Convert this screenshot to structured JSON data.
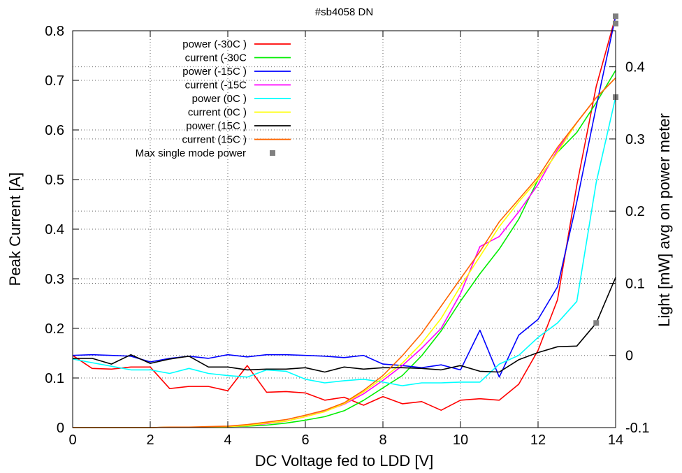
{
  "chart_data": {
    "type": "line",
    "title": "#sb4058 DN",
    "xlabel": "DC Voltage fed to LDD [V]",
    "ylabel": "Peak Current [A]",
    "y2label": "Light [mW] avg on power meter",
    "xlim": [
      0,
      14
    ],
    "ylim": [
      0,
      0.8
    ],
    "y2lim": [
      -0.1,
      0.45
    ],
    "grid": true,
    "legend_position": "top-left",
    "x_ticks": [
      "0",
      "2",
      "4",
      "6",
      "8",
      "10",
      "12",
      "14"
    ],
    "y_ticks": [
      "0",
      "0.1",
      "0.2",
      "0.3",
      "0.4",
      "0.5",
      "0.6",
      "0.7",
      "0.8"
    ],
    "y2_ticks": [
      "-0.1",
      "0",
      "0.1",
      "0.2",
      "0.3",
      "0.4"
    ],
    "x": [
      0,
      0.5,
      1,
      1.5,
      2,
      2.5,
      3,
      3.5,
      4,
      4.5,
      5,
      5.5,
      6,
      6.5,
      7,
      7.5,
      8,
      8.5,
      9,
      9.5,
      10,
      10.5,
      11,
      11.5,
      12,
      12.5,
      13,
      13.5,
      14
    ],
    "series": [
      {
        "name": "power (-30C )",
        "axis": "y2",
        "color": "#ff0000",
        "values": [
          0.0,
          -0.018,
          -0.019,
          -0.016,
          -0.016,
          -0.046,
          -0.043,
          -0.043,
          -0.049,
          -0.014,
          -0.051,
          -0.05,
          -0.052,
          -0.062,
          -0.058,
          -0.069,
          -0.057,
          -0.067,
          -0.064,
          -0.076,
          -0.062,
          -0.06,
          -0.062,
          -0.04,
          0.007,
          0.077,
          0.236,
          0.373,
          0.47
        ]
      },
      {
        "name": "current (-30C",
        "axis": "y",
        "color": "#00ee00",
        "values": [
          0.0,
          0.0,
          0.0,
          0.0,
          0.0,
          0.001,
          0.001,
          0.001,
          0.002,
          0.003,
          0.005,
          0.009,
          0.015,
          0.022,
          0.034,
          0.055,
          0.08,
          0.105,
          0.145,
          0.195,
          0.255,
          0.31,
          0.36,
          0.42,
          0.5,
          0.555,
          0.595,
          0.655,
          0.72
        ]
      },
      {
        "name": "power (-15C )",
        "axis": "y2",
        "color": "#0000ff",
        "values": [
          0.0,
          0.001,
          0.0,
          -0.001,
          -0.009,
          -0.004,
          -0.001,
          -0.004,
          0.001,
          -0.002,
          0.001,
          0.001,
          0.0,
          -0.001,
          -0.003,
          0.0,
          -0.012,
          -0.014,
          -0.017,
          -0.013,
          -0.02,
          0.035,
          -0.03,
          0.028,
          0.05,
          0.095,
          0.213,
          0.345,
          0.47
        ]
      },
      {
        "name": "current (-15C",
        "axis": "y",
        "color": "#ff00ff",
        "values": [
          0.0,
          0.0,
          0.0,
          0.0,
          0.0,
          0.001,
          0.001,
          0.001,
          0.002,
          0.004,
          0.008,
          0.013,
          0.022,
          0.033,
          0.047,
          0.068,
          0.095,
          0.125,
          0.16,
          0.2,
          0.27,
          0.365,
          0.385,
          0.435,
          0.49,
          0.56,
          0.615,
          0.665,
          0.705
        ]
      },
      {
        "name": "power (0C )",
        "axis": "y2",
        "color": "#00ffff",
        "values": [
          -0.005,
          -0.01,
          -0.015,
          -0.02,
          -0.02,
          -0.025,
          -0.018,
          -0.025,
          -0.028,
          -0.03,
          -0.02,
          -0.022,
          -0.033,
          -0.038,
          -0.035,
          -0.033,
          -0.037,
          -0.042,
          -0.038,
          -0.038,
          -0.037,
          -0.037,
          -0.012,
          0.0,
          0.025,
          0.045,
          0.075,
          0.24,
          0.358
        ]
      },
      {
        "name": "current (0C )",
        "axis": "y",
        "color": "#ffff00",
        "values": [
          0.0,
          0.0,
          0.0,
          0.0,
          0.0,
          0.001,
          0.001,
          0.001,
          0.002,
          0.004,
          0.009,
          0.013,
          0.022,
          0.032,
          0.048,
          0.072,
          0.1,
          0.13,
          0.17,
          0.22,
          0.285,
          0.345,
          0.405,
          0.455,
          0.5,
          0.555,
          0.615,
          0.665,
          0.705
        ]
      },
      {
        "name": "power (15C )",
        "axis": "y2",
        "color": "#000000",
        "values": [
          -0.004,
          -0.004,
          -0.012,
          0.001,
          -0.011,
          -0.005,
          -0.001,
          -0.016,
          -0.016,
          -0.02,
          -0.019,
          -0.019,
          -0.017,
          -0.023,
          -0.016,
          -0.019,
          -0.017,
          -0.017,
          -0.018,
          -0.02,
          -0.014,
          -0.022,
          -0.023,
          -0.006,
          0.004,
          0.012,
          0.013,
          0.045,
          0.108
        ]
      },
      {
        "name": "current (15C )",
        "axis": "y",
        "color": "#ff6600",
        "values": [
          0.0,
          0.0,
          0.0,
          0.0,
          0.0,
          0.001,
          0.001,
          0.002,
          0.003,
          0.006,
          0.011,
          0.016,
          0.025,
          0.035,
          0.05,
          0.075,
          0.105,
          0.145,
          0.19,
          0.245,
          0.3,
          0.355,
          0.415,
          0.46,
          0.505,
          0.565,
          0.615,
          0.665,
          0.705
        ]
      }
    ],
    "max_single_mode_power": {
      "name": "Max single mode power",
      "axis": "y2",
      "color": "#808080",
      "points": [
        [
          14,
          0.47
        ],
        [
          14,
          0.46
        ],
        [
          14,
          0.358
        ],
        [
          13.5,
          0.045
        ]
      ]
    }
  }
}
